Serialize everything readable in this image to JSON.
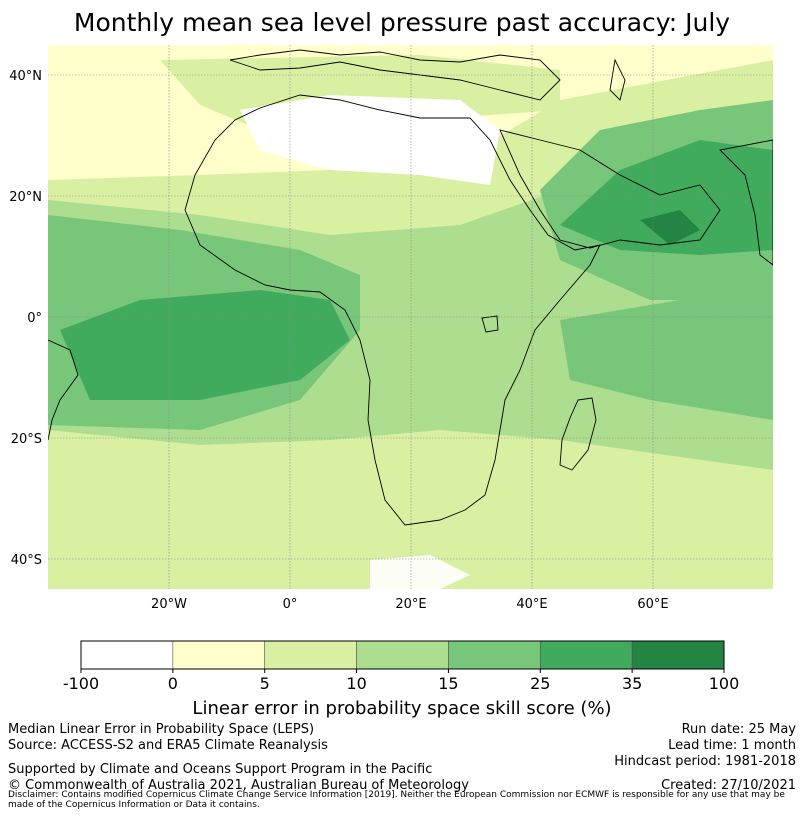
{
  "title": "Monthly mean sea level pressure past accuracy: July",
  "map": {
    "lat_ticks": [
      {
        "value": 40,
        "label": "40°N"
      },
      {
        "value": 20,
        "label": "20°N"
      },
      {
        "value": 0,
        "label": "0°"
      },
      {
        "value": -20,
        "label": "20°S"
      },
      {
        "value": -40,
        "label": "40°S"
      }
    ],
    "lon_ticks": [
      {
        "value": -20,
        "label": "20°W"
      },
      {
        "value": 0,
        "label": "0°"
      },
      {
        "value": 20,
        "label": "20°E"
      },
      {
        "value": 40,
        "label": "40°E"
      },
      {
        "value": 60,
        "label": "60°E"
      }
    ],
    "extent": {
      "lon": [
        -40,
        80
      ],
      "lat": [
        -45,
        45
      ]
    },
    "gridlines": true
  },
  "colorbar": {
    "bounds": [
      "-100",
      "0",
      "5",
      "10",
      "15",
      "25",
      "35",
      "100"
    ],
    "colors": [
      "#ffffff",
      "#ffffcc",
      "#d9f0a3",
      "#addd8e",
      "#78c679",
      "#41ab5d",
      "#238443"
    ],
    "label": "Linear error in probability space skill score (%)"
  },
  "footer": {
    "left": [
      "Median Linear Error in Probability Space (LEPS)",
      "Source: ACCESS-S2 and ERA5 Climate Reanalysis",
      "",
      "Supported by Climate and Oceans Support Program in the Pacific",
      "© Commonwealth of Australia 2021, Australian Bureau of Meteorology"
    ],
    "right": [
      "Run date: 25 May",
      "Lead time: 1 month",
      "Hindcast period: 1981-2018",
      "",
      "Created: 27/10/2021"
    ],
    "disclaimer": "Disclaimer: Contains modified Copernicus Climate Change Service Information [2019]. Neither the European Commission nor ECMWF is responsible for any use that may be made of the Copernicus Information or Data it contains."
  }
}
